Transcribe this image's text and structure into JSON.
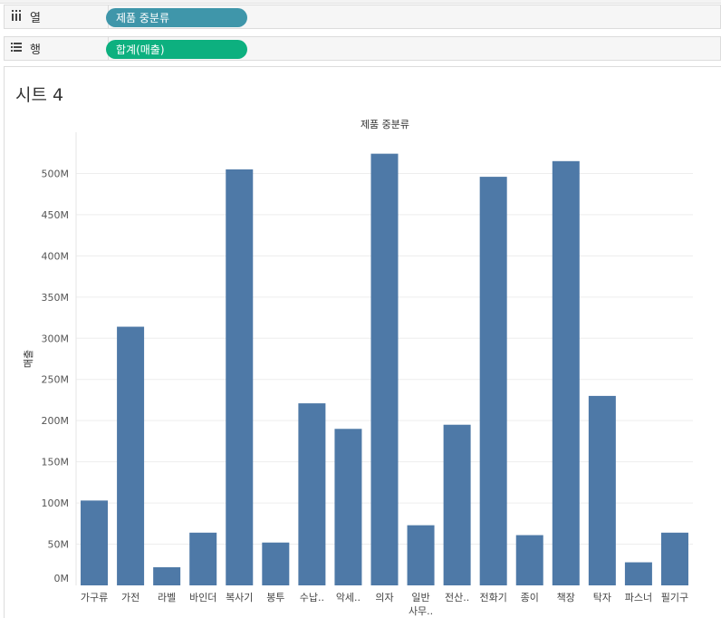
{
  "shelves": {
    "columns": {
      "label": "열",
      "icon": "columns-icon",
      "pill": "제품 중분류",
      "pill_color": "#3f96aa"
    },
    "rows": {
      "label": "행",
      "icon": "rows-list-icon",
      "pill": "합계(매출)",
      "pill_color": "#0db07f"
    }
  },
  "sheet": {
    "title": "시트 4"
  },
  "chart_data": {
    "type": "bar",
    "title": "제품 중분류",
    "xlabel": "",
    "ylabel": "매출",
    "bar_color": "#4e79a7",
    "ylim": [
      0,
      550
    ],
    "y_ticks": [
      0,
      50,
      100,
      150,
      200,
      250,
      300,
      350,
      400,
      450,
      500
    ],
    "y_tick_labels": [
      "0M",
      "50M",
      "100M",
      "150M",
      "200M",
      "250M",
      "300M",
      "350M",
      "400M",
      "450M",
      "500M"
    ],
    "categories": [
      "가구류",
      "가전",
      "라벨",
      "바인더",
      "복사기",
      "봉투",
      "수납..",
      "악세..",
      "의자",
      "일반 사무..",
      "전산..",
      "전화기",
      "종이",
      "책장",
      "탁자",
      "파스너",
      "필기구"
    ],
    "values": [
      103,
      314,
      22,
      64,
      505,
      52,
      221,
      190,
      524,
      73,
      195,
      496,
      61,
      515,
      230,
      28,
      64
    ],
    "grid": true,
    "legend": "none"
  }
}
